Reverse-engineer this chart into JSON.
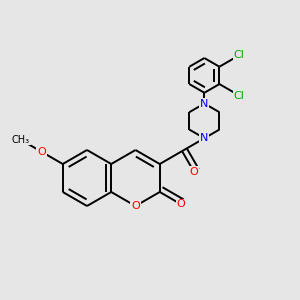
{
  "background_color": "#e6e6e6",
  "bond_color": "#000000",
  "bond_lw": 1.4,
  "atom_colors": {
    "O": "#ff0000",
    "N": "#0000ff",
    "Cl": "#00aa00"
  },
  "font_size": 8.0,
  "fig_size": 3.0,
  "dpi": 100,
  "bl": 0.28
}
